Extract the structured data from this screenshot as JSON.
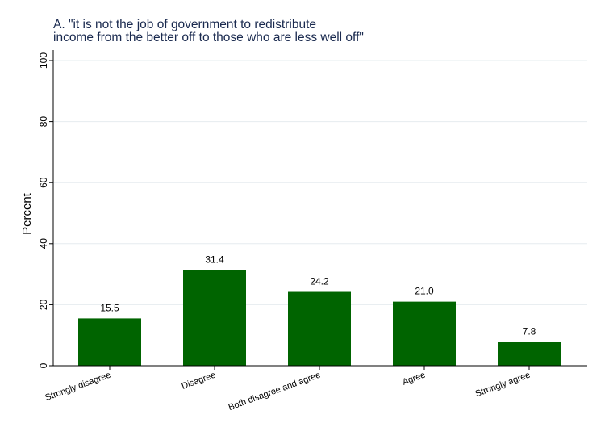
{
  "chart_data": {
    "type": "bar",
    "title_lines": [
      "A. \"it is not the job of government to redistribute",
      "income from the better off to those who are less well off\""
    ],
    "xlabel": "",
    "ylabel": "Percent",
    "categories": [
      "Strongly disagree",
      "Disagree",
      "Both disagree and agree",
      "Agree",
      "Strongly agree"
    ],
    "values": [
      15.5,
      31.4,
      24.2,
      21.0,
      7.8
    ],
    "value_labels": [
      "15.5",
      "31.4",
      "24.2",
      "21.0",
      "7.8"
    ],
    "ylim": [
      0,
      100
    ],
    "yticks": [
      0,
      20,
      40,
      60,
      80,
      100
    ],
    "ytick_labels": [
      "0",
      "20",
      "40",
      "60",
      "80",
      "100"
    ],
    "grid": true,
    "bar_color": "#006400",
    "grid_color": "#e6ecef"
  }
}
